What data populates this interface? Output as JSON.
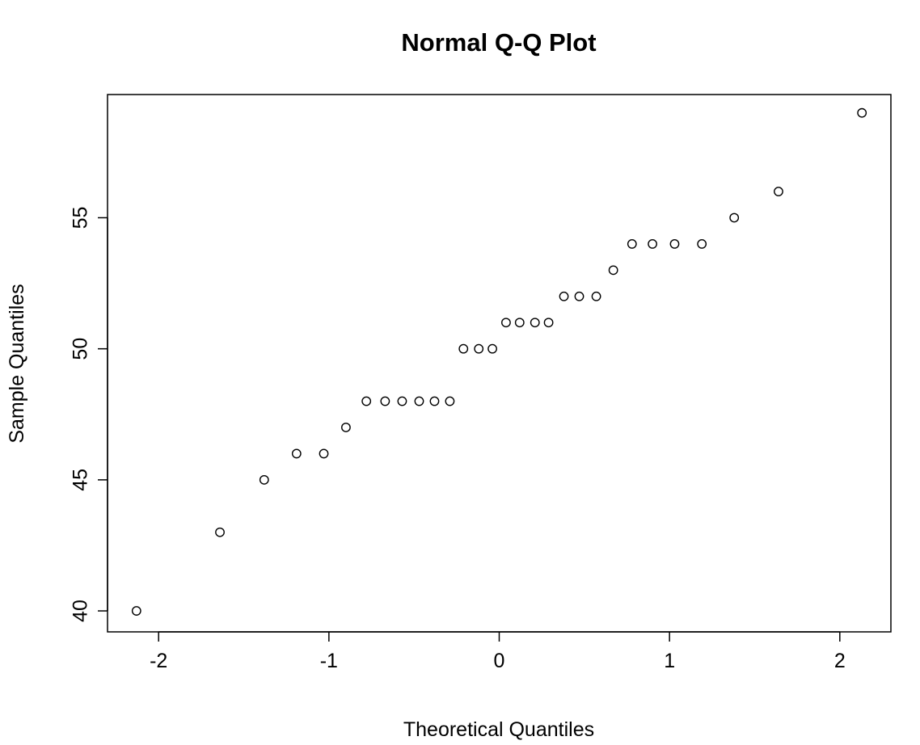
{
  "chart_data": {
    "type": "scatter",
    "title": "Normal Q-Q Plot",
    "xlabel": "Theoretical Quantiles",
    "ylabel": "Sample Quantiles",
    "xlim": [
      -2.3,
      2.3
    ],
    "ylim": [
      39.2,
      59.7
    ],
    "xticks": [
      -2,
      -1,
      0,
      1,
      2
    ],
    "xtick_labels": [
      "-2",
      "-1",
      "0",
      "1",
      "2"
    ],
    "yticks": [
      40,
      45,
      50,
      55
    ],
    "ytick_labels": [
      "40",
      "45",
      "50",
      "55"
    ],
    "grid": false,
    "marker": "open-circle",
    "series": [
      {
        "x": [
          -2.13,
          -1.64,
          -1.38,
          -1.19,
          -1.03,
          -0.9,
          -0.78,
          -0.67,
          -0.57,
          -0.47,
          -0.38,
          -0.29,
          -0.21,
          -0.12,
          -0.04,
          0.04,
          0.12,
          0.21,
          0.29,
          0.38,
          0.47,
          0.57,
          0.67,
          0.78,
          0.9,
          1.03,
          1.19,
          1.38,
          1.64,
          2.13
        ],
        "y": [
          40,
          43,
          45,
          46,
          46,
          47,
          48,
          48,
          48,
          48,
          48,
          48,
          50,
          50,
          50,
          51,
          51,
          51,
          51,
          52,
          52,
          52,
          53,
          54,
          54,
          54,
          54,
          55,
          56,
          59
        ]
      }
    ]
  }
}
